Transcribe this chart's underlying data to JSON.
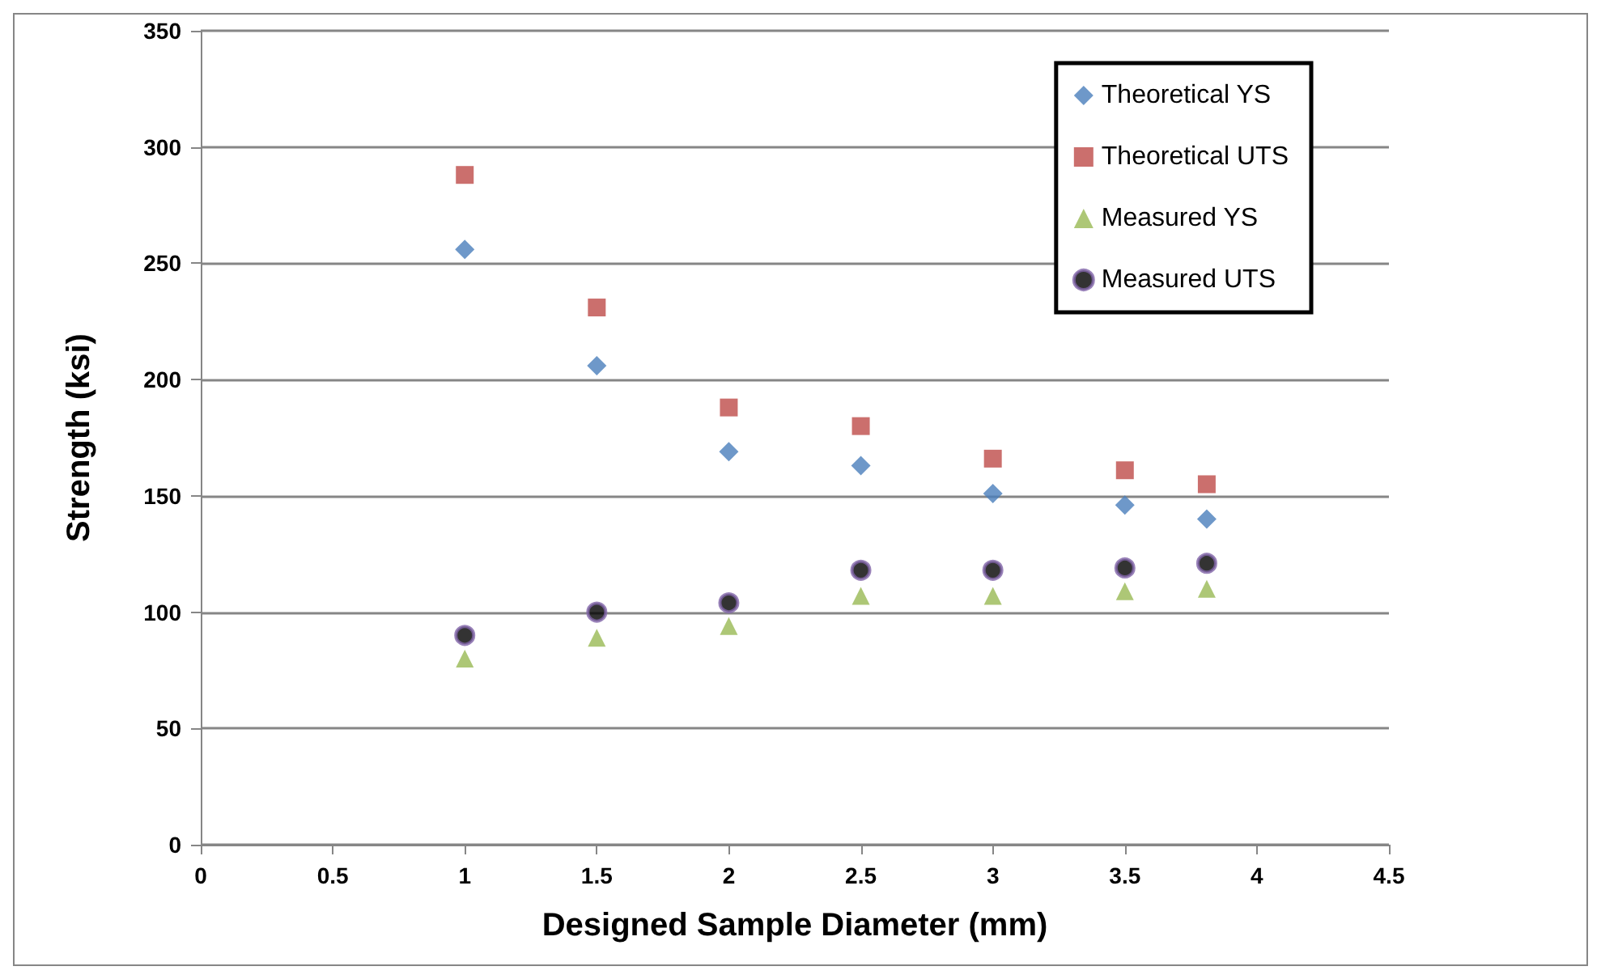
{
  "chart_data": {
    "type": "scatter",
    "xlabel": "Designed Sample Diameter (mm)",
    "ylabel": "Strength (ksi)",
    "x": [
      1,
      1.5,
      2,
      2.5,
      3,
      3.5,
      3.81
    ],
    "series": [
      {
        "name": "Theoretical YS",
        "color": "#4a7ebb",
        "marker": "diamond",
        "values": [
          256,
          206,
          169,
          163,
          151,
          146,
          140
        ]
      },
      {
        "name": "Theoretical UTS",
        "color": "#be4b48",
        "marker": "square",
        "values": [
          288,
          231,
          188,
          180,
          166,
          161,
          155
        ]
      },
      {
        "name": "Measured YS",
        "color": "#98b954",
        "marker": "triangle",
        "values": [
          80,
          89,
          94,
          107,
          107,
          109,
          110
        ]
      },
      {
        "name": "Measured UTS",
        "color": "#000000",
        "marker": "circle",
        "values": [
          90,
          100,
          104,
          118,
          118,
          119,
          121
        ]
      }
    ],
    "xlim": [
      0,
      4.5
    ],
    "xticks": [
      0,
      0.5,
      1,
      1.5,
      2,
      2.5,
      3,
      3.5,
      4,
      4.5
    ],
    "ylim": [
      0,
      350
    ],
    "yticks": [
      0,
      50,
      100,
      150,
      200,
      250,
      300,
      350
    ],
    "grid": "y",
    "legend": "top right"
  }
}
